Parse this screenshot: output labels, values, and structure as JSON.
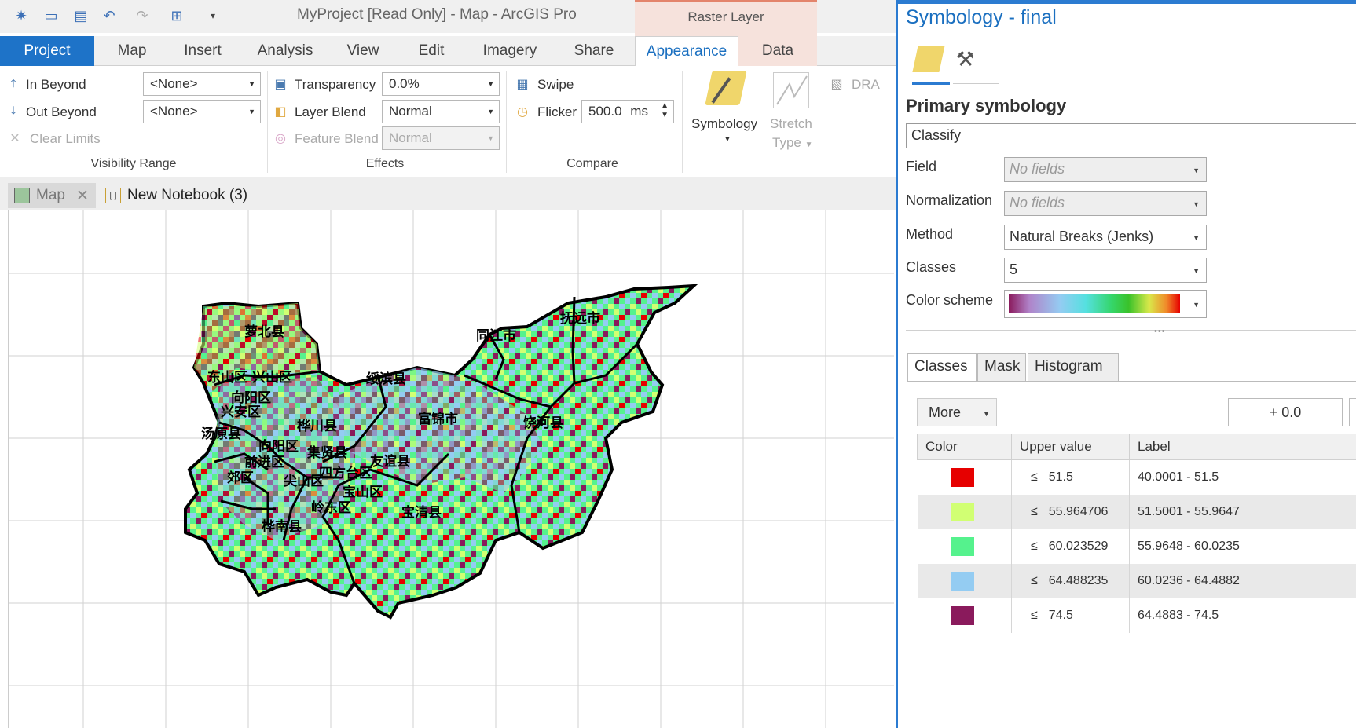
{
  "app": {
    "title": "MyProject [Read Only] - Map - ArcGIS Pro",
    "context_tab_group": "Raster Layer"
  },
  "tabs": [
    {
      "label": "Project"
    },
    {
      "label": "Map"
    },
    {
      "label": "Insert"
    },
    {
      "label": "Analysis"
    },
    {
      "label": "View"
    },
    {
      "label": "Edit"
    },
    {
      "label": "Imagery"
    },
    {
      "label": "Share"
    },
    {
      "label": "Appearance"
    },
    {
      "label": "Data"
    }
  ],
  "ribbon": {
    "visibility": {
      "in_beyond": "In Beyond",
      "in_beyond_value": "<None>",
      "out_beyond": "Out Beyond",
      "out_beyond_value": "<None>",
      "clear_limits": "Clear Limits",
      "group": "Visibility Range"
    },
    "effects": {
      "transparency": "Transparency",
      "transparency_value": "0.0%",
      "layer_blend": "Layer Blend",
      "layer_blend_value": "Normal",
      "feature_blend": "Feature Blend",
      "feature_blend_value": "Normal",
      "group": "Effects"
    },
    "compare": {
      "swipe": "Swipe",
      "flicker": "Flicker",
      "flicker_value": "500.0",
      "flicker_unit": "ms",
      "group": "Compare"
    },
    "rendering": {
      "symbology": "Symbology",
      "stretch": "Stretch",
      "stretch_type": "Type",
      "dra": "DRA"
    }
  },
  "view_tabs": [
    {
      "label": "Map"
    },
    {
      "label": "New Notebook (3)"
    }
  ],
  "map_labels": [
    "萝北县",
    "同江市",
    "抚远市",
    "东山区",
    "兴山区",
    "绥滨县",
    "向阳区",
    "兴安区",
    "汤原县",
    "桦川县",
    "富锦市",
    "饶河县",
    "向阳区",
    "集贤县",
    "前进区",
    "郊区",
    "尖山区",
    "四方台区",
    "友谊县",
    "宝山区",
    "岭东区",
    "宝清县",
    "桦南县"
  ],
  "pane": {
    "title": "Symbology - final",
    "section": "Primary symbology",
    "renderer": "Classify",
    "field_label": "Field",
    "field_value": "No fields",
    "norm_label": "Normalization",
    "norm_value": "No fields",
    "method_label": "Method",
    "method_value": "Natural Breaks (Jenks)",
    "classes_label": "Classes",
    "classes_value": "5",
    "scheme_label": "Color scheme",
    "subtabs": [
      {
        "label": "Classes"
      },
      {
        "label": "Mask"
      },
      {
        "label": "Histogram"
      }
    ],
    "more": "More",
    "offset": "+ 0.0",
    "columns": {
      "color": "Color",
      "upper": "Upper value",
      "label": "Label"
    },
    "le": "≤",
    "rows": [
      {
        "color": "#e60000",
        "upper": "51.5",
        "label": "40.0001 - 51.5"
      },
      {
        "color": "#d1ff73",
        "upper": "55.964706",
        "label": "51.5001 - 55.9647"
      },
      {
        "color": "#55f28d",
        "upper": "60.023529",
        "label": "55.9648 - 60.0235"
      },
      {
        "color": "#94ccf2",
        "upper": "64.488235",
        "label": "60.0236 - 64.4882"
      },
      {
        "color": "#8a1a5c",
        "upper": "74.5",
        "label": "64.4883 - 74.5"
      }
    ]
  }
}
